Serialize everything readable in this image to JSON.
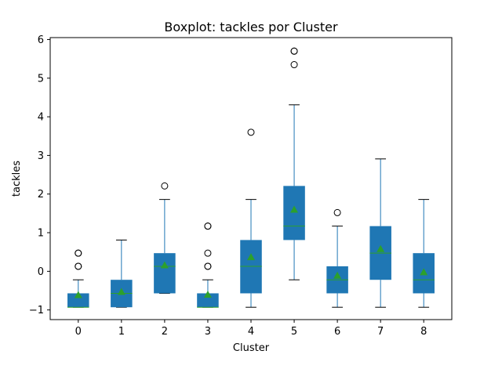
{
  "chart_data": {
    "type": "boxplot",
    "title": "Boxplot: tackles por Cluster",
    "xlabel": "Cluster",
    "ylabel": "tackles",
    "categories": [
      "0",
      "1",
      "2",
      "3",
      "4",
      "5",
      "6",
      "7",
      "8"
    ],
    "ylim": [
      -1.25,
      6.05
    ],
    "yticks": [
      -1,
      0,
      1,
      2,
      3,
      4,
      5,
      6
    ],
    "grid": false,
    "legend": "none",
    "colors": {
      "box": "#1f77b4",
      "median": "#2ca02c",
      "mean_marker": "#2ca02c",
      "whisker": "#1f77b4",
      "cap": "#000000",
      "flier": "#000000"
    },
    "boxes": [
      {
        "cluster": "0",
        "whislo": -0.93,
        "q1": -0.93,
        "med": -0.93,
        "q3": -0.57,
        "whishi": -0.22,
        "mean": -0.61,
        "fliers": [
          0.13,
          0.13,
          0.47,
          0.47
        ]
      },
      {
        "cluster": "1",
        "whislo": -0.93,
        "q1": -0.93,
        "med": -0.57,
        "q3": -0.22,
        "whishi": 0.81,
        "mean": -0.53,
        "fliers": []
      },
      {
        "cluster": "2",
        "whislo": -0.57,
        "q1": -0.57,
        "med": 0.13,
        "q3": 0.47,
        "whishi": 1.86,
        "mean": 0.16,
        "fliers": [
          2.21
        ]
      },
      {
        "cluster": "3",
        "whislo": -0.93,
        "q1": -0.93,
        "med": -0.93,
        "q3": -0.57,
        "whishi": -0.22,
        "mean": -0.6,
        "fliers": [
          0.13,
          0.13,
          0.47,
          1.17,
          1.17
        ]
      },
      {
        "cluster": "4",
        "whislo": -0.93,
        "q1": -0.57,
        "med": 0.13,
        "q3": 0.81,
        "whishi": 1.86,
        "mean": 0.37,
        "fliers": [
          3.6
        ]
      },
      {
        "cluster": "5",
        "whislo": -0.22,
        "q1": 0.81,
        "med": 1.17,
        "q3": 2.21,
        "whishi": 4.31,
        "mean": 1.6,
        "fliers": [
          5.35,
          5.7,
          5.7
        ]
      },
      {
        "cluster": "6",
        "whislo": -0.93,
        "q1": -0.57,
        "med": -0.22,
        "q3": 0.13,
        "whishi": 1.17,
        "mean": -0.11,
        "fliers": [
          1.52
        ]
      },
      {
        "cluster": "7",
        "whislo": -0.93,
        "q1": -0.22,
        "med": 0.47,
        "q3": 1.17,
        "whishi": 2.91,
        "mean": 0.58,
        "fliers": []
      },
      {
        "cluster": "8",
        "whislo": -0.93,
        "q1": -0.57,
        "med": -0.22,
        "q3": 0.47,
        "whishi": 1.86,
        "mean": -0.02,
        "fliers": []
      }
    ]
  }
}
